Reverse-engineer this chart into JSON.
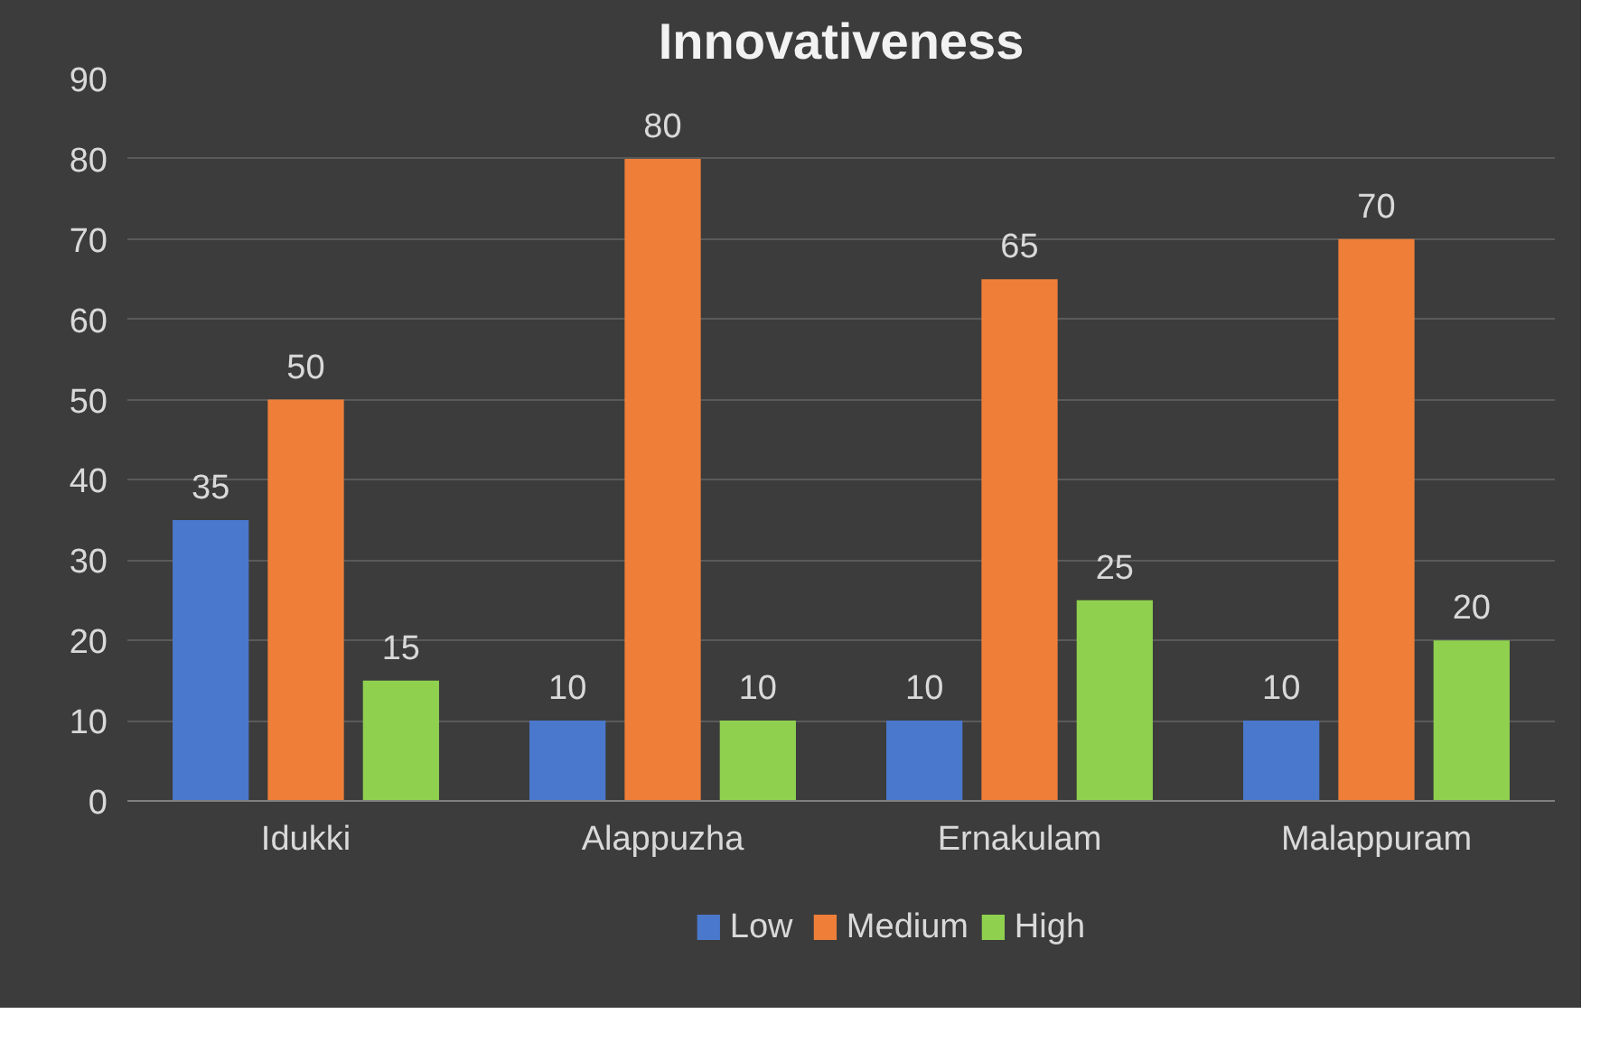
{
  "chart_data": {
    "type": "bar",
    "title": "Innovativeness",
    "categories": [
      "Idukki",
      "Alappuzha",
      "Ernakulam",
      "Malappuram"
    ],
    "series": [
      {
        "name": "Low",
        "color": "#4a78cc",
        "values": [
          35,
          10,
          10,
          10
        ]
      },
      {
        "name": "Medium",
        "color": "#ef7f38",
        "values": [
          50,
          80,
          65,
          70
        ]
      },
      {
        "name": "High",
        "color": "#8fd14f",
        "values": [
          15,
          10,
          25,
          20
        ]
      }
    ],
    "ylim": [
      0,
      90
    ],
    "yticks": [
      0,
      10,
      20,
      30,
      40,
      50,
      60,
      70,
      80,
      90
    ],
    "grid": "y",
    "legend": "bottom",
    "data_labels": true
  }
}
